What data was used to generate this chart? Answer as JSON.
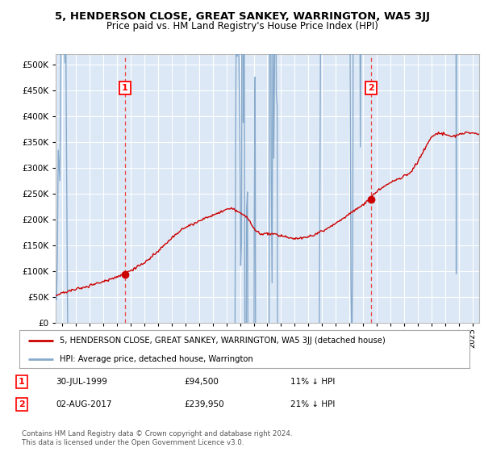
{
  "title": "5, HENDERSON CLOSE, GREAT SANKEY, WARRINGTON, WA5 3JJ",
  "subtitle": "Price paid vs. HM Land Registry's House Price Index (HPI)",
  "legend_entry1": "5, HENDERSON CLOSE, GREAT SANKEY, WARRINGTON, WA5 3JJ (detached house)",
  "legend_entry2": "HPI: Average price, detached house, Warrington",
  "annotation1_date": "30-JUL-1999",
  "annotation1_price": "£94,500",
  "annotation1_hpi": "11% ↓ HPI",
  "annotation2_date": "02-AUG-2017",
  "annotation2_price": "£239,950",
  "annotation2_hpi": "21% ↓ HPI",
  "footer": "Contains HM Land Registry data © Crown copyright and database right 2024.\nThis data is licensed under the Open Government Licence v3.0.",
  "sale1_year": 1999.58,
  "sale1_value": 94500,
  "sale2_year": 2017.59,
  "sale2_value": 239950,
  "red_color": "#cc0000",
  "blue_color": "#88aacc",
  "dashed_color": "#ee4444",
  "ylim_min": 0,
  "ylim_max": 520000,
  "xlim_min": 1994.5,
  "xlim_max": 2025.5
}
